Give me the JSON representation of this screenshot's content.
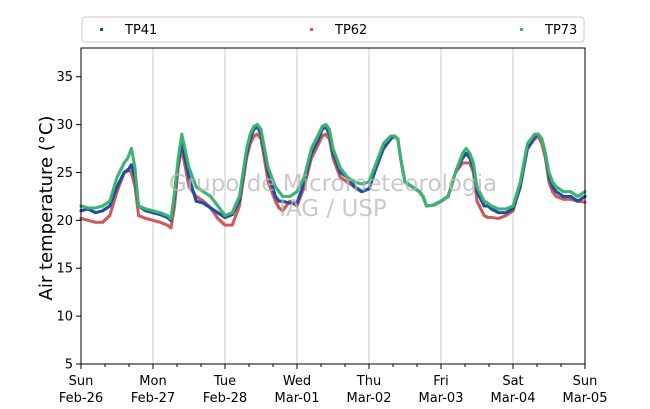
{
  "chart_data": {
    "type": "scatter",
    "ylabel": "Air temperature (°C)",
    "ylim": [
      5,
      38
    ],
    "yticks": [
      5,
      10,
      15,
      20,
      25,
      30,
      35
    ],
    "xlim": [
      "2017-02-26 00:00",
      "2017-03-05 00:00"
    ],
    "xticks": [
      {
        "day": "Sun",
        "date": "Feb-26"
      },
      {
        "day": "Mon",
        "date": "Feb-27"
      },
      {
        "day": "Tue",
        "date": "Feb-28"
      },
      {
        "day": "Wed",
        "date": "Mar-01"
      },
      {
        "day": "Thu",
        "date": "Mar-02"
      },
      {
        "day": "Fri",
        "date": "Mar-03"
      },
      {
        "day": "Sat",
        "date": "Mar-04"
      },
      {
        "day": "Sun",
        "date": "Mar-05"
      }
    ],
    "grid": "vertical",
    "legend_position": "top",
    "watermark": [
      "Grupo de Micrometeorologia",
      "IAG / USP"
    ],
    "series": [
      {
        "name": "TP41",
        "color": "#1f4e9c",
        "x": [
          0,
          0.1,
          0.2,
          0.3,
          0.4,
          0.5,
          0.6,
          0.65,
          0.7,
          0.75,
          0.8,
          0.9,
          1.0,
          1.1,
          1.2,
          1.25,
          1.3,
          1.35,
          1.4,
          1.5,
          1.6,
          1.7,
          1.8,
          1.9,
          2.0,
          2.1,
          2.2,
          2.3,
          2.35,
          2.4,
          2.45,
          2.5,
          2.6,
          2.7,
          2.75,
          2.8,
          2.9,
          3.0,
          3.1,
          3.2,
          3.3,
          3.35,
          3.4,
          3.45,
          3.5,
          3.6,
          3.7,
          3.8,
          3.9,
          4.0,
          4.1,
          4.2,
          4.3,
          4.35,
          4.4,
          4.45,
          4.5,
          4.6,
          4.7,
          4.75,
          4.8,
          4.9,
          5.0,
          5.1,
          5.2,
          5.3,
          5.35,
          5.4,
          5.45,
          5.5,
          5.6,
          5.65,
          5.7,
          5.8,
          5.9,
          6.0,
          6.1,
          6.2,
          6.3,
          6.35,
          6.4,
          6.45,
          6.5,
          6.55,
          6.6,
          6.7,
          6.8,
          6.9,
          7.0
        ],
        "y": [
          21.0,
          21.2,
          20.8,
          21.0,
          21.5,
          23.5,
          25.0,
          25.2,
          25.8,
          24.5,
          21.5,
          21.0,
          20.8,
          20.6,
          20.3,
          20.0,
          22.5,
          26.0,
          28.0,
          24.5,
          22.0,
          21.8,
          21.3,
          20.8,
          20.3,
          20.6,
          22.0,
          27.0,
          28.5,
          29.5,
          29.8,
          29.0,
          25.0,
          22.5,
          22.0,
          22.0,
          21.8,
          21.8,
          24.0,
          27.0,
          28.5,
          29.5,
          29.8,
          29.0,
          27.0,
          25.0,
          24.5,
          23.5,
          23.0,
          23.3,
          25.5,
          27.5,
          28.5,
          28.8,
          28.5,
          26.0,
          24.0,
          23.5,
          23.0,
          22.5,
          21.5,
          21.6,
          22.0,
          22.5,
          25.0,
          26.5,
          27.0,
          26.5,
          25.5,
          23.0,
          21.5,
          21.5,
          21.2,
          20.8,
          20.8,
          21.2,
          23.5,
          27.5,
          28.7,
          29.0,
          28.5,
          27.0,
          24.5,
          23.5,
          23.0,
          22.5,
          22.5,
          22.0,
          22.5
        ]
      },
      {
        "name": "TP62",
        "color": "#cd5a5a",
        "x": [
          0,
          0.1,
          0.2,
          0.3,
          0.4,
          0.5,
          0.6,
          0.65,
          0.7,
          0.75,
          0.8,
          0.9,
          1.0,
          1.1,
          1.2,
          1.25,
          1.3,
          1.35,
          1.4,
          1.5,
          1.6,
          1.7,
          1.8,
          1.9,
          2.0,
          2.1,
          2.2,
          2.3,
          2.35,
          2.4,
          2.45,
          2.5,
          2.6,
          2.7,
          2.75,
          2.8,
          2.9,
          3.0,
          3.1,
          3.2,
          3.3,
          3.35,
          3.4,
          3.45,
          3.5,
          3.6,
          3.7,
          3.8,
          3.9,
          4.0,
          4.1,
          4.2,
          4.3,
          4.35,
          4.4,
          4.45,
          4.5,
          4.6,
          4.7,
          4.75,
          4.8,
          4.9,
          5.0,
          5.1,
          5.2,
          5.3,
          5.35,
          5.4,
          5.45,
          5.5,
          5.6,
          5.65,
          5.7,
          5.8,
          5.9,
          6.0,
          6.1,
          6.2,
          6.3,
          6.35,
          6.4,
          6.45,
          6.5,
          6.55,
          6.6,
          6.7,
          6.8,
          6.9,
          7.0
        ],
        "y": [
          20.2,
          20.0,
          19.8,
          19.8,
          20.5,
          23.0,
          25.0,
          25.3,
          25.0,
          23.5,
          20.5,
          20.2,
          20.0,
          19.8,
          19.5,
          19.2,
          21.5,
          25.5,
          27.5,
          23.5,
          22.5,
          22.0,
          21.3,
          20.2,
          19.5,
          19.5,
          21.5,
          26.5,
          28.0,
          28.8,
          29.0,
          28.5,
          24.0,
          22.0,
          21.3,
          21.0,
          22.0,
          21.5,
          23.5,
          26.5,
          28.0,
          28.8,
          29.0,
          28.5,
          26.5,
          24.5,
          24.0,
          23.5,
          23.0,
          23.3,
          25.5,
          27.5,
          28.5,
          28.8,
          28.5,
          26.0,
          24.0,
          23.5,
          23.0,
          22.5,
          21.5,
          21.6,
          22.0,
          22.5,
          25.0,
          26.0,
          26.0,
          26.0,
          25.0,
          22.0,
          20.5,
          20.3,
          20.3,
          20.2,
          20.5,
          21.0,
          23.5,
          27.5,
          28.5,
          28.8,
          28.0,
          26.5,
          24.0,
          23.0,
          22.5,
          22.2,
          22.2,
          22.0,
          21.9
        ]
      },
      {
        "name": "TP73",
        "color": "#3cb371",
        "x": [
          0,
          0.1,
          0.2,
          0.3,
          0.4,
          0.5,
          0.6,
          0.65,
          0.7,
          0.75,
          0.8,
          0.9,
          1.0,
          1.1,
          1.2,
          1.25,
          1.3,
          1.35,
          1.4,
          1.5,
          1.6,
          1.7,
          1.8,
          1.9,
          2.0,
          2.1,
          2.2,
          2.3,
          2.35,
          2.4,
          2.45,
          2.5,
          2.6,
          2.7,
          2.75,
          2.8,
          2.9,
          3.0,
          3.1,
          3.2,
          3.3,
          3.35,
          3.4,
          3.45,
          3.5,
          3.6,
          3.7,
          3.8,
          3.9,
          4.0,
          4.1,
          4.2,
          4.3,
          4.35,
          4.4,
          4.45,
          4.5,
          4.6,
          4.7,
          4.75,
          4.8,
          4.9,
          5.0,
          5.1,
          5.2,
          5.3,
          5.35,
          5.4,
          5.45,
          5.5,
          5.6,
          5.65,
          5.7,
          5.8,
          5.9,
          6.0,
          6.1,
          6.2,
          6.3,
          6.35,
          6.4,
          6.45,
          6.5,
          6.55,
          6.6,
          6.7,
          6.8,
          6.9,
          7.0
        ],
        "y": [
          21.5,
          21.3,
          21.3,
          21.5,
          22.0,
          24.5,
          26.0,
          26.5,
          27.5,
          25.5,
          21.5,
          21.2,
          21.0,
          20.8,
          20.5,
          20.2,
          23.0,
          26.5,
          29.0,
          25.5,
          23.5,
          23.0,
          22.5,
          21.5,
          20.5,
          20.8,
          22.5,
          27.5,
          29.0,
          29.8,
          30.0,
          29.5,
          25.5,
          23.5,
          23.0,
          22.5,
          22.5,
          23.0,
          24.5,
          27.5,
          29.0,
          29.8,
          30.0,
          29.5,
          27.5,
          25.5,
          24.5,
          24.0,
          23.8,
          24.0,
          26.0,
          28.0,
          28.8,
          28.8,
          28.5,
          26.0,
          24.0,
          23.5,
          23.0,
          22.5,
          21.5,
          21.6,
          22.0,
          22.5,
          25.0,
          27.0,
          27.5,
          27.0,
          26.0,
          23.5,
          22.0,
          21.8,
          21.5,
          21.2,
          21.2,
          21.5,
          24.0,
          28.0,
          29.0,
          29.0,
          28.5,
          27.0,
          25.0,
          24.0,
          23.5,
          23.0,
          23.0,
          22.5,
          23.0
        ]
      }
    ]
  }
}
